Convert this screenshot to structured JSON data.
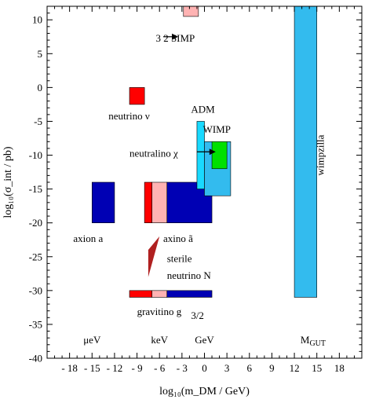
{
  "chart_data": {
    "type": "range-boxes",
    "xlabel": "log₁₀(m_DM / GeV)",
    "ylabel": "log₁₀(σ_int / pb)",
    "xlim": [
      -21,
      21
    ],
    "ylim": [
      -40,
      12
    ],
    "xticks": [
      -18,
      -15,
      -12,
      -9,
      -6,
      -3,
      0,
      3,
      6,
      9,
      12,
      15,
      18
    ],
    "yticks": [
      10,
      5,
      0,
      -5,
      -10,
      -15,
      -20,
      -25,
      -30,
      -35,
      -40
    ],
    "grid": false,
    "colors": {
      "navy": "#0000b4",
      "red": "#ff0000",
      "pink": "#ffb3b3",
      "green": "#00e000",
      "cyan": "#19d9ff",
      "sky": "#33bbee",
      "darkred": "#b02020"
    },
    "regions": [
      {
        "id": "simp",
        "x": [
          -2.8,
          -0.8
        ],
        "y": [
          10.5,
          12
        ],
        "color": "pink"
      },
      {
        "id": "neutrino",
        "x": [
          -10,
          -8
        ],
        "y": [
          -2.5,
          0
        ],
        "color": "red"
      },
      {
        "id": "axion",
        "x": [
          -15,
          -12
        ],
        "y": [
          -20,
          -14
        ],
        "color": "navy"
      },
      {
        "id": "axino-red",
        "x": [
          -8,
          -7
        ],
        "y": [
          -20,
          -14
        ],
        "color": "red"
      },
      {
        "id": "axino-pink",
        "x": [
          -7,
          -5
        ],
        "y": [
          -20,
          -14
        ],
        "color": "pink"
      },
      {
        "id": "axino-navy",
        "x": [
          -5,
          1
        ],
        "y": [
          -20,
          -14
        ],
        "color": "navy"
      },
      {
        "id": "adm",
        "x": [
          -1,
          0
        ],
        "y": [
          -15,
          -5
        ],
        "color": "cyan"
      },
      {
        "id": "wimp-outer",
        "x": [
          0,
          3.5
        ],
        "y": [
          -16,
          -8
        ],
        "color": "sky"
      },
      {
        "id": "wimp-inner",
        "x": [
          1,
          3
        ],
        "y": [
          -12,
          -8
        ],
        "color": "green"
      },
      {
        "id": "gravitino-red",
        "x": [
          -10,
          -7
        ],
        "y": [
          -31,
          -30
        ],
        "color": "red"
      },
      {
        "id": "gravitino-pink",
        "x": [
          -7,
          -5
        ],
        "y": [
          -31,
          -30
        ],
        "color": "pink"
      },
      {
        "id": "gravitino-navy",
        "x": [
          -5,
          1
        ],
        "y": [
          -31,
          -30
        ],
        "color": "navy"
      },
      {
        "id": "wimpzilla",
        "x": [
          12,
          15
        ],
        "y": [
          -31,
          12
        ],
        "color": "sky"
      }
    ],
    "sterile_triangle": [
      [
        -7.5,
        -24
      ],
      [
        -7.5,
        -28
      ],
      [
        -6,
        -22
      ]
    ],
    "neutralino_arrow": {
      "from": [
        -1,
        -9.5
      ],
      "to": [
        1.5,
        -9.5
      ]
    },
    "simp_arrow": {
      "from": [
        -5.5,
        7.5
      ],
      "to": [
        -3.5,
        7.5
      ]
    },
    "labels": {
      "simp": {
        "text": "3  2 SIMP",
        "x": -6.5,
        "y": 6.8
      },
      "neutrino": {
        "text": "neutrino ν",
        "x": -12.8,
        "y": -4.7
      },
      "adm": {
        "text": "ADM",
        "x": -1.8,
        "y": -3.7
      },
      "wimp": {
        "text": "WIMP",
        "x": -0.2,
        "y": -6.7
      },
      "neutralino": {
        "text": "neutralino χ",
        "x": -10,
        "y": -10.2
      },
      "axion": {
        "text": "axion a",
        "x": -17.5,
        "y": -22.8
      },
      "axino": {
        "text": "axino ã",
        "x": -5.5,
        "y": -22.8
      },
      "sterile_line1": {
        "text": "sterile",
        "x": -5,
        "y": -25.8
      },
      "sterile_line2": {
        "text": "neutrino N",
        "x": -5,
        "y": -28.3
      },
      "gravitino_main": {
        "text": "gravitino g",
        "x": -9,
        "y": -33.6
      },
      "gravitino_sub": {
        "text": "3/2",
        "x": -1.8,
        "y": -34.2
      },
      "wimpzilla": {
        "text": "wimpzilla",
        "x": 15.9,
        "y": -10
      }
    },
    "scale_labels": [
      {
        "text": "μeV",
        "x": -15,
        "y": -37.8
      },
      {
        "text": "keV",
        "x": -6,
        "y": -37.8
      },
      {
        "text": "GeV",
        "x": 0,
        "y": -37.8
      },
      {
        "text": "M",
        "sub": "GUT",
        "x": 14.5,
        "y": -37.8
      }
    ]
  }
}
